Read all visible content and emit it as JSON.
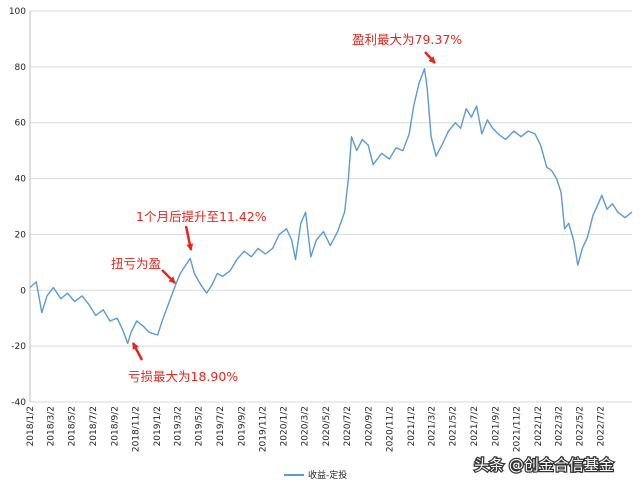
{
  "chart_data": {
    "type": "line",
    "title": "",
    "xlabel": "",
    "ylabel": "",
    "ylim": [
      -40,
      100
    ],
    "yticks": [
      -40,
      -20,
      0,
      20,
      40,
      60,
      80,
      100
    ],
    "xlim": [
      "2018-01-02",
      "2022-09-30"
    ],
    "xtick_labels": [
      "2018/1/2",
      "2018/3/2",
      "2018/5/2",
      "2018/7/2",
      "2018/9/2",
      "2018/11/2",
      "2019/1/2",
      "2019/3/2",
      "2019/5/2",
      "2019/7/2",
      "2019/9/2",
      "2019/11/2",
      "2020/1/2",
      "2020/3/2",
      "2020/5/2",
      "2020/7/2",
      "2020/9/2",
      "2020/11/2",
      "2021/1/2",
      "2021/3/2",
      "2021/5/2",
      "2021/7/2",
      "2021/9/2",
      "2021/11/2",
      "2022/1/2",
      "2022/3/2",
      "2022/5/2",
      "2022/7/2"
    ],
    "grid": "horizontal",
    "legend_position": "bottom",
    "series": [
      {
        "name": "收益-定投",
        "color": "#5b9bd5",
        "points": [
          [
            "2018-01-02",
            1
          ],
          [
            "2018-01-20",
            3
          ],
          [
            "2018-02-05",
            -8
          ],
          [
            "2018-02-20",
            -2
          ],
          [
            "2018-03-10",
            1
          ],
          [
            "2018-04-01",
            -3
          ],
          [
            "2018-04-20",
            -1
          ],
          [
            "2018-05-10",
            -4
          ],
          [
            "2018-06-01",
            -2
          ],
          [
            "2018-06-20",
            -5
          ],
          [
            "2018-07-10",
            -9
          ],
          [
            "2018-08-01",
            -7
          ],
          [
            "2018-08-20",
            -11
          ],
          [
            "2018-09-10",
            -10
          ],
          [
            "2018-09-25",
            -14
          ],
          [
            "2018-10-10",
            -19
          ],
          [
            "2018-10-20",
            -15
          ],
          [
            "2018-11-05",
            -11
          ],
          [
            "2018-11-25",
            -13
          ],
          [
            "2018-12-10",
            -15
          ],
          [
            "2019-01-04",
            -16
          ],
          [
            "2019-01-20",
            -10
          ],
          [
            "2019-02-10",
            -3
          ],
          [
            "2019-02-25",
            2
          ],
          [
            "2019-03-10",
            6
          ],
          [
            "2019-04-08",
            11.42
          ],
          [
            "2019-04-20",
            6
          ],
          [
            "2019-05-08",
            2
          ],
          [
            "2019-05-25",
            -1
          ],
          [
            "2019-06-10",
            2
          ],
          [
            "2019-06-25",
            6
          ],
          [
            "2019-07-10",
            5
          ],
          [
            "2019-08-01",
            7
          ],
          [
            "2019-08-20",
            11
          ],
          [
            "2019-09-10",
            14
          ],
          [
            "2019-10-01",
            12
          ],
          [
            "2019-10-20",
            15
          ],
          [
            "2019-11-10",
            13
          ],
          [
            "2019-12-01",
            15
          ],
          [
            "2019-12-20",
            20
          ],
          [
            "2020-01-10",
            22
          ],
          [
            "2020-01-25",
            18
          ],
          [
            "2020-02-05",
            11
          ],
          [
            "2020-02-20",
            24
          ],
          [
            "2020-03-05",
            28
          ],
          [
            "2020-03-20",
            12
          ],
          [
            "2020-04-05",
            18
          ],
          [
            "2020-04-25",
            21
          ],
          [
            "2020-05-15",
            16
          ],
          [
            "2020-06-05",
            21
          ],
          [
            "2020-06-25",
            28
          ],
          [
            "2020-07-06",
            40
          ],
          [
            "2020-07-15",
            55
          ],
          [
            "2020-07-30",
            50
          ],
          [
            "2020-08-15",
            54
          ],
          [
            "2020-09-01",
            52
          ],
          [
            "2020-09-15",
            45
          ],
          [
            "2020-10-10",
            49
          ],
          [
            "2020-11-01",
            47
          ],
          [
            "2020-11-20",
            51
          ],
          [
            "2020-12-10",
            50
          ],
          [
            "2020-12-28",
            56
          ],
          [
            "2021-01-10",
            66
          ],
          [
            "2021-01-25",
            74
          ],
          [
            "2021-02-10",
            79.37
          ],
          [
            "2021-02-18",
            72
          ],
          [
            "2021-03-01",
            55
          ],
          [
            "2021-03-15",
            48
          ],
          [
            "2021-04-01",
            52
          ],
          [
            "2021-04-20",
            57
          ],
          [
            "2021-05-10",
            60
          ],
          [
            "2021-05-25",
            58
          ],
          [
            "2021-06-10",
            65
          ],
          [
            "2021-06-25",
            62
          ],
          [
            "2021-07-10",
            66
          ],
          [
            "2021-07-25",
            56
          ],
          [
            "2021-08-10",
            61
          ],
          [
            "2021-08-25",
            58
          ],
          [
            "2021-09-10",
            56
          ],
          [
            "2021-10-01",
            54
          ],
          [
            "2021-10-25",
            57
          ],
          [
            "2021-11-15",
            55
          ],
          [
            "2021-12-05",
            57
          ],
          [
            "2021-12-25",
            56
          ],
          [
            "2022-01-10",
            52
          ],
          [
            "2022-01-28",
            44
          ],
          [
            "2022-02-10",
            43
          ],
          [
            "2022-02-25",
            40
          ],
          [
            "2022-03-10",
            35
          ],
          [
            "2022-03-20",
            22
          ],
          [
            "2022-04-01",
            24
          ],
          [
            "2022-04-15",
            18
          ],
          [
            "2022-04-27",
            9
          ],
          [
            "2022-05-10",
            15
          ],
          [
            "2022-05-25",
            19
          ],
          [
            "2022-06-10",
            27
          ],
          [
            "2022-06-25",
            31
          ],
          [
            "2022-07-05",
            34
          ],
          [
            "2022-07-20",
            29
          ],
          [
            "2022-08-05",
            31
          ],
          [
            "2022-08-20",
            28
          ],
          [
            "2022-09-10",
            26
          ],
          [
            "2022-09-30",
            28
          ]
        ]
      }
    ],
    "annotations": [
      {
        "text": "盈利最大为79.37%",
        "x": "2021-02-10",
        "y": 79.37
      },
      {
        "text": "1个月后提升至11.42%",
        "x": "2019-04-08",
        "y": 11.42
      },
      {
        "text": "扭亏为盈",
        "x": "2019-02-25",
        "y": 2
      },
      {
        "text": "亏损最大为18.90%",
        "x": "2018-10-10",
        "y": -19
      }
    ]
  },
  "watermark": "头条 @创金合信基金",
  "colors": {
    "line": "#5b9bd5",
    "annotation": "#e8261d",
    "grid": "#d9d9d9"
  }
}
